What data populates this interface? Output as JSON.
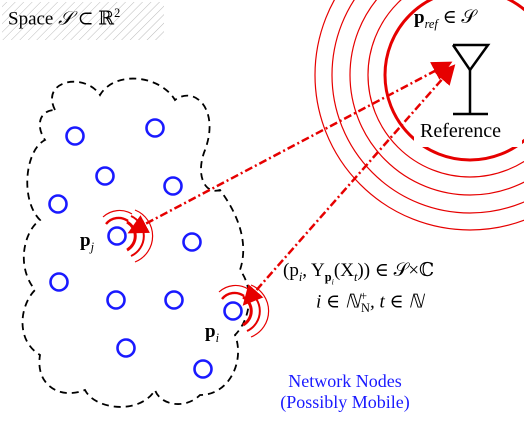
{
  "space": {
    "prefix": "Space ",
    "sym": "𝒮",
    "rest": " ⊂ ℝ",
    "sup": "2"
  },
  "reference": {
    "label": "Reference",
    "pref_main": "p",
    "pref_sub": "ref",
    "pref_rest": " ∈ 𝒮"
  },
  "nodes": {
    "pj_main": "p",
    "pj_sub": "j",
    "pi_main": "p",
    "pi_sub": "i",
    "caption_line1": "Network Nodes",
    "caption_line2": "(Possibly Mobile)"
  },
  "formula": {
    "line1_a": "(p",
    "line1_b": "i",
    "line1_c": ", Y",
    "line1_d": "p",
    "line1_e": "i",
    "line1_f": "(X",
    "line1_g": "t",
    "line1_h": ")) ∈ 𝒮×ℂ",
    "line2": "i ∈ ℕ",
    "line2_sup": "+",
    "line2_sub": "N",
    "line2_rest": ", t ∈ ℕ"
  },
  "colors": {
    "node_blue": "#1a1aff",
    "signal_red": "#e60000",
    "caption_blue": "#1a1aff"
  }
}
